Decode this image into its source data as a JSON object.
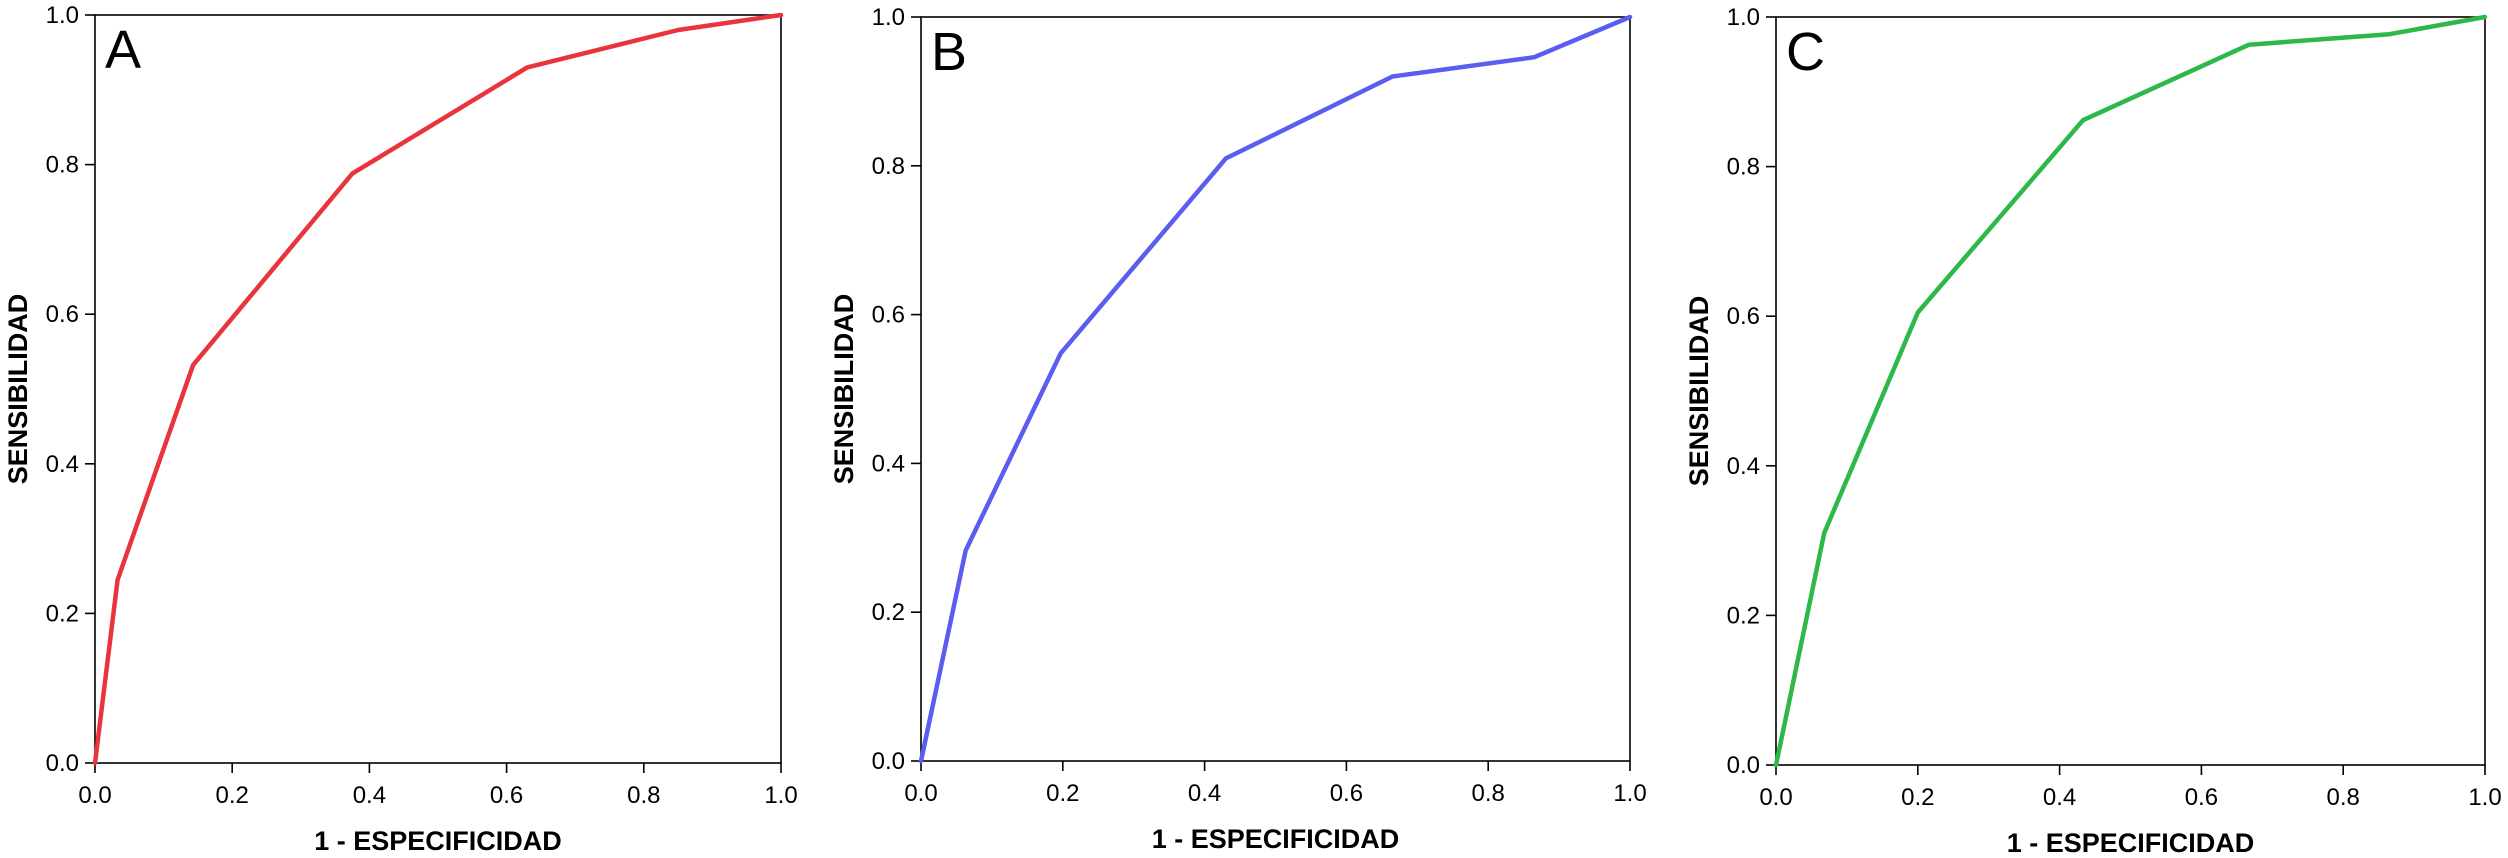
{
  "chart_data": [
    {
      "type": "line",
      "panel_label": "A",
      "xlabel": "1 - ESPECIFICIDAD",
      "ylabel": "SENSIBILIDAD",
      "xlim": [
        0,
        1
      ],
      "ylim": [
        0,
        1
      ],
      "xticks": [
        "0.0",
        "0.2",
        "0.4",
        "0.6",
        "0.8",
        "1.0"
      ],
      "yticks": [
        "0.0",
        "0.2",
        "0.4",
        "0.6",
        "0.8",
        "1.0"
      ],
      "grid": false,
      "color": "#e8343a",
      "series": [
        {
          "x": [
            0.0,
            0.033,
            0.143,
            0.375,
            0.63,
            0.85,
            1.0
          ],
          "y": [
            0.0,
            0.245,
            0.532,
            0.788,
            0.93,
            0.98,
            1.0
          ]
        }
      ]
    },
    {
      "type": "line",
      "panel_label": "B",
      "xlabel": "1 - ESPECIFICIDAD",
      "ylabel": "SENSIBILIDAD",
      "xlim": [
        0,
        1
      ],
      "ylim": [
        0,
        1
      ],
      "xticks": [
        "0.0",
        "0.2",
        "0.4",
        "0.6",
        "0.8",
        "1.0"
      ],
      "yticks": [
        "0.0",
        "0.2",
        "0.4",
        "0.6",
        "0.8",
        "1.0"
      ],
      "grid": false,
      "color": "#5b5cf0",
      "series": [
        {
          "x": [
            0.0,
            0.063,
            0.197,
            0.43,
            0.665,
            0.865,
            1.0
          ],
          "y": [
            0.0,
            0.283,
            0.548,
            0.81,
            0.92,
            0.946,
            1.0
          ]
        }
      ]
    },
    {
      "type": "line",
      "panel_label": "C",
      "xlabel": "1 - ESPECIFICIDAD",
      "ylabel": "SENSIBILIDAD",
      "xlim": [
        0,
        1
      ],
      "ylim": [
        0,
        1
      ],
      "xticks": [
        "0.0",
        "0.2",
        "0.4",
        "0.6",
        "0.8",
        "1.0"
      ],
      "yticks": [
        "0.0",
        "0.2",
        "0.4",
        "0.6",
        "0.8",
        "1.0"
      ],
      "grid": false,
      "color": "#2db84a",
      "series": [
        {
          "x": [
            0.0,
            0.068,
            0.2,
            0.433,
            0.667,
            0.865,
            1.0
          ],
          "y": [
            0.0,
            0.31,
            0.605,
            0.862,
            0.963,
            0.977,
            1.0
          ]
        }
      ]
    }
  ]
}
